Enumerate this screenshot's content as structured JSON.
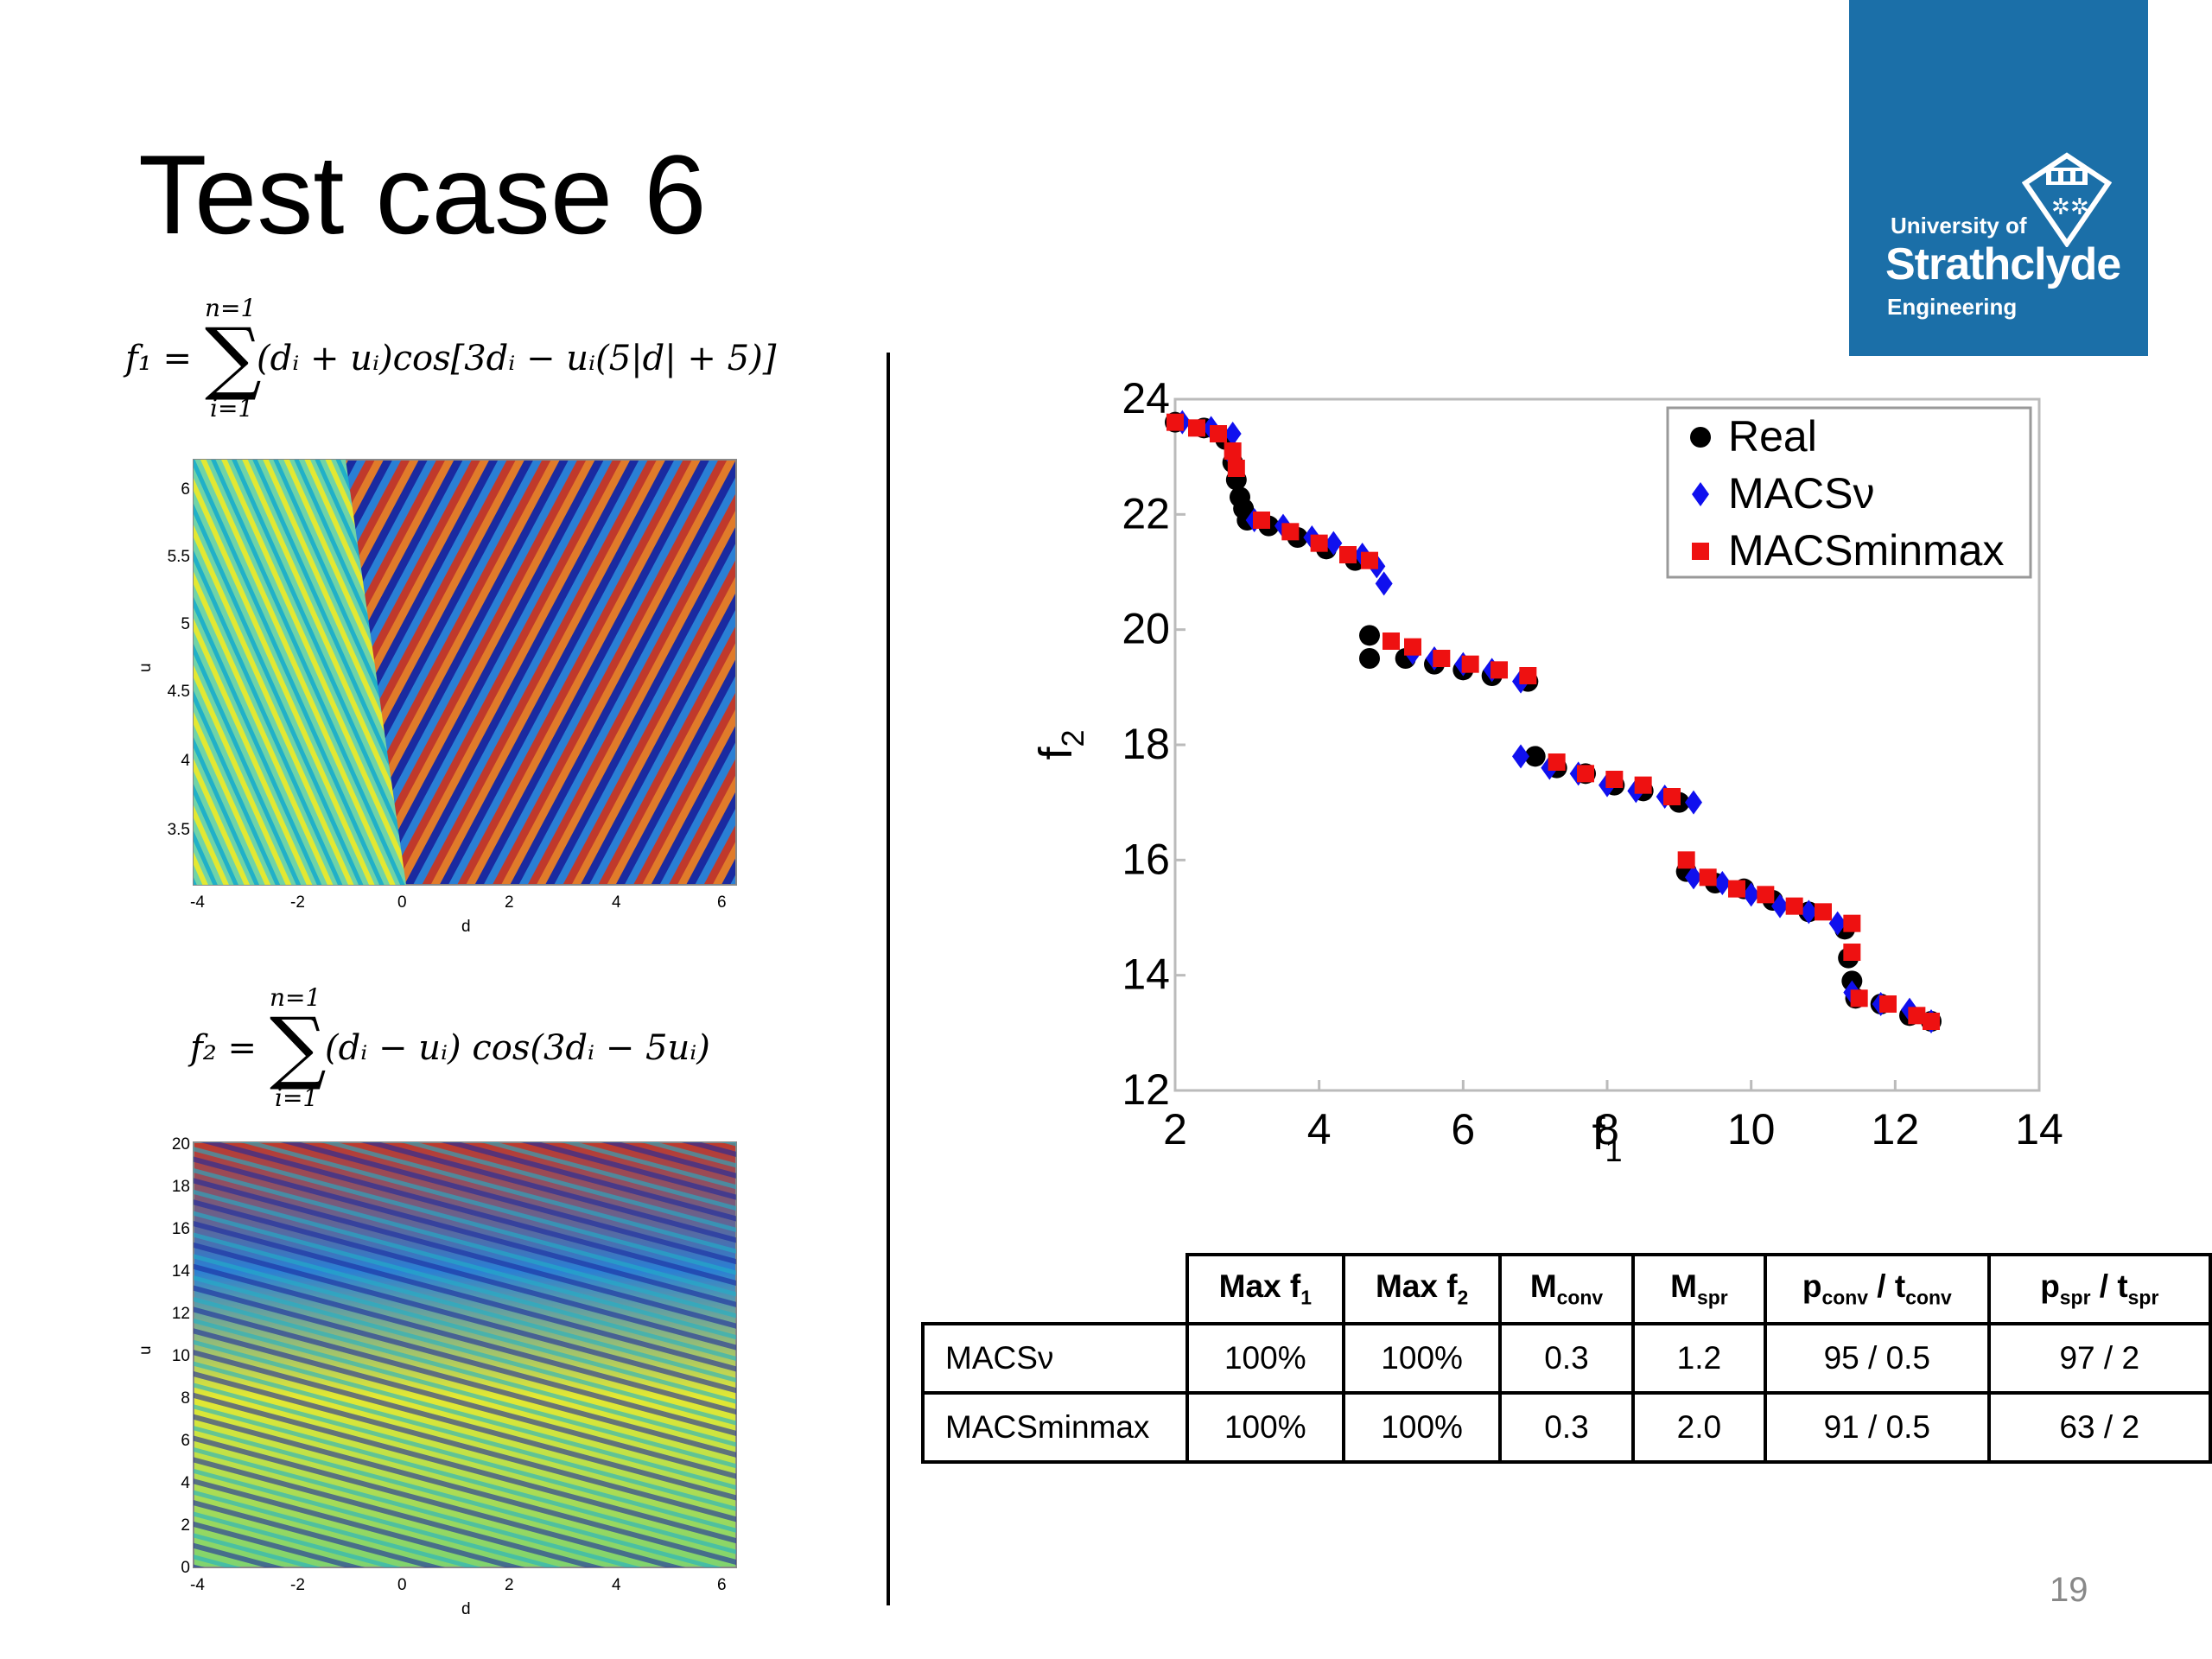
{
  "slide": {
    "title": "Test case 6",
    "page_number": "19"
  },
  "logo": {
    "line1": "University of",
    "line2": "Strathclyde",
    "line3": "Engineering",
    "color": "#1b6fa8"
  },
  "formula1": {
    "upper": "n=1",
    "lower": "i=1",
    "lhs": "f₁ =",
    "body": "(dᵢ + uᵢ)cos[3dᵢ − uᵢ(5|d| + 5)]"
  },
  "formula2": {
    "upper": "n=1",
    "lower": "i=1",
    "lhs": "f₂ =",
    "body": "(dᵢ − uᵢ) cos(3dᵢ − 5uᵢ)"
  },
  "contour1": {
    "xlabel": "d",
    "ylabel": "u",
    "xticks": [
      "-4",
      "-2",
      "0",
      "2",
      "4",
      "6"
    ],
    "yticks": [
      "3.5",
      "4",
      "4.5",
      "5",
      "5.5",
      "6"
    ]
  },
  "contour2": {
    "xlabel": "d",
    "ylabel": "u",
    "xticks": [
      "-4",
      "-2",
      "0",
      "2",
      "4",
      "6"
    ],
    "yticks": [
      "0",
      "2",
      "4",
      "6",
      "8",
      "10",
      "12",
      "14",
      "16",
      "18",
      "20"
    ]
  },
  "chart_data": {
    "type": "scatter",
    "xlabel": "f1",
    "ylabel": "f2",
    "xlim": [
      2,
      14
    ],
    "ylim": [
      12,
      24
    ],
    "xticks": [
      "2",
      "4",
      "6",
      "8",
      "10",
      "12",
      "14"
    ],
    "yticks": [
      "12",
      "14",
      "16",
      "18",
      "20",
      "22",
      "24"
    ],
    "legend_position": "top-right",
    "series": [
      {
        "name": "Real",
        "marker": "circle",
        "color": "#000000",
        "x": [
          2.0,
          2.4,
          2.7,
          2.8,
          2.85,
          2.9,
          2.95,
          3.0,
          3.3,
          3.7,
          4.1,
          4.5,
          4.7,
          4.7,
          5.2,
          5.6,
          6.0,
          6.4,
          6.9,
          7.0,
          7.3,
          7.7,
          8.1,
          8.5,
          9.0,
          9.1,
          9.5,
          9.9,
          10.3,
          10.8,
          11.3,
          11.35,
          11.4,
          11.45,
          11.8,
          12.2,
          12.5
        ],
        "y": [
          23.6,
          23.5,
          23.3,
          22.9,
          22.6,
          22.3,
          22.1,
          21.9,
          21.8,
          21.6,
          21.4,
          21.2,
          19.9,
          19.5,
          19.5,
          19.4,
          19.3,
          19.2,
          19.1,
          17.8,
          17.6,
          17.5,
          17.3,
          17.2,
          17.0,
          15.8,
          15.6,
          15.5,
          15.3,
          15.1,
          14.8,
          14.3,
          13.9,
          13.6,
          13.5,
          13.3,
          13.2
        ]
      },
      {
        "name": "MACSν",
        "marker": "diamond",
        "color": "#1010ee",
        "x": [
          2.1,
          2.5,
          2.8,
          2.8,
          3.1,
          3.5,
          3.9,
          4.2,
          4.6,
          4.8,
          4.9,
          5.3,
          5.6,
          6.0,
          6.4,
          6.8,
          6.8,
          7.2,
          7.6,
          8.0,
          8.4,
          8.8,
          9.2,
          9.2,
          9.6,
          10.0,
          10.4,
          10.8,
          11.2,
          11.4,
          11.8,
          12.2,
          12.5
        ],
        "y": [
          23.6,
          23.5,
          23.4,
          23.0,
          21.9,
          21.8,
          21.6,
          21.5,
          21.3,
          21.1,
          20.8,
          19.6,
          19.5,
          19.4,
          19.3,
          19.1,
          17.8,
          17.6,
          17.5,
          17.3,
          17.2,
          17.1,
          17.0,
          15.7,
          15.6,
          15.4,
          15.2,
          15.1,
          14.9,
          13.7,
          13.5,
          13.4,
          13.2
        ]
      },
      {
        "name": "MACSminmax",
        "marker": "square",
        "color": "#ee1111",
        "x": [
          2.0,
          2.3,
          2.6,
          2.8,
          2.85,
          3.2,
          3.6,
          4.0,
          4.4,
          4.7,
          5.0,
          5.3,
          5.7,
          6.1,
          6.5,
          6.9,
          7.3,
          7.7,
          8.1,
          8.5,
          8.9,
          9.1,
          9.4,
          9.8,
          10.2,
          10.6,
          11.0,
          11.4,
          11.4,
          11.5,
          11.9,
          12.3,
          12.5
        ],
        "y": [
          23.6,
          23.5,
          23.4,
          23.1,
          22.8,
          21.9,
          21.7,
          21.5,
          21.3,
          21.2,
          19.8,
          19.7,
          19.5,
          19.4,
          19.3,
          19.2,
          17.7,
          17.5,
          17.4,
          17.3,
          17.1,
          16.0,
          15.7,
          15.5,
          15.4,
          15.2,
          15.1,
          14.9,
          14.4,
          13.6,
          13.5,
          13.3,
          13.2
        ]
      }
    ]
  },
  "table": {
    "headers": [
      {
        "main": "Max f",
        "sub": "1"
      },
      {
        "main": "Max f",
        "sub": "2"
      },
      {
        "main": "M",
        "sub": "conv"
      },
      {
        "main": "M",
        "sub": "spr"
      },
      {
        "p": "p",
        "p_sub": "conv",
        "sep": " / ",
        "t": "t",
        "t_sub": "conv"
      },
      {
        "p": "p",
        "p_sub": "spr",
        "sep": " / ",
        "t": "t",
        "t_sub": "spr"
      }
    ],
    "rows": [
      {
        "name": "MACSν",
        "cells": [
          "100%",
          "100%",
          "0.3",
          "1.2",
          "95 / 0.5",
          "97 / 2"
        ]
      },
      {
        "name": "MACSminmax",
        "cells": [
          "100%",
          "100%",
          "0.3",
          "2.0",
          "91 / 0.5",
          "63 / 2"
        ]
      }
    ]
  }
}
